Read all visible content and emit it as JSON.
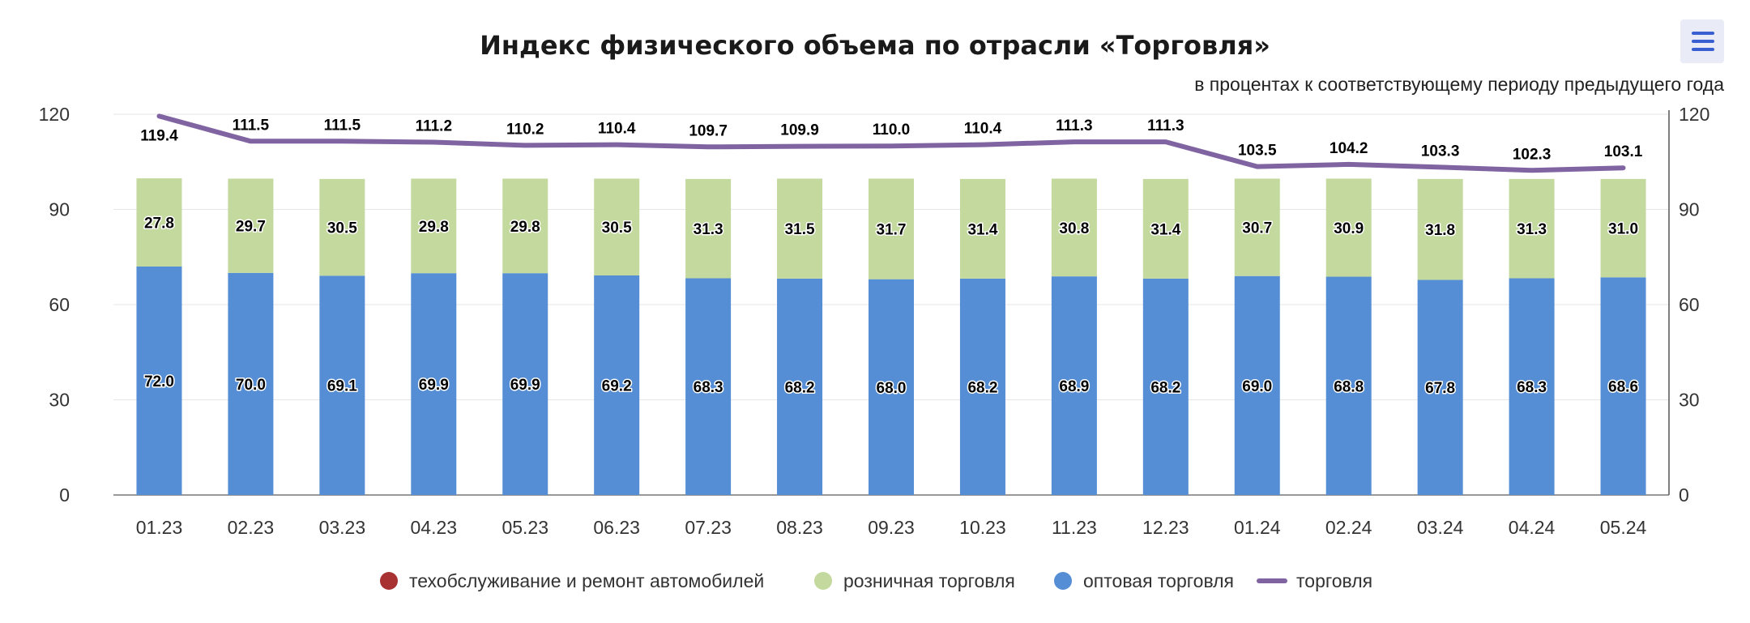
{
  "chart_data": {
    "type": "bar",
    "stacked": true,
    "title": "Индекс физического объема по отрасли «Торговля»",
    "subtitle": "в процентах к соответствующему периоду предыдущего года",
    "categories": [
      "01.23",
      "02.23",
      "03.23",
      "04.23",
      "05.23",
      "06.23",
      "07.23",
      "08.23",
      "09.23",
      "10.23",
      "11.23",
      "12.23",
      "01.24",
      "02.24",
      "03.24",
      "04.24",
      "05.24"
    ],
    "ylim": [
      0,
      120
    ],
    "yticks": [
      "0",
      "30",
      "60",
      "90",
      "120"
    ],
    "legend_position": "bottom",
    "series": [
      {
        "name": "техобслуживание и ремонт автомобилей",
        "kind": "bar",
        "color": "#a83232",
        "values": [
          0,
          0,
          0,
          0,
          0,
          0,
          0,
          0,
          0,
          0,
          0,
          0,
          0,
          0,
          0,
          0,
          0
        ]
      },
      {
        "name": "розничная торговля",
        "kind": "bar",
        "color": "#c3d99e",
        "values": [
          27.8,
          29.7,
          30.5,
          29.8,
          29.8,
          30.5,
          31.3,
          31.5,
          31.7,
          31.4,
          30.8,
          31.4,
          30.7,
          30.9,
          31.8,
          31.3,
          31.0
        ]
      },
      {
        "name": "оптовая торговля",
        "kind": "bar",
        "color": "#558ed5",
        "values": [
          72.0,
          70.0,
          69.1,
          69.9,
          69.9,
          69.2,
          68.3,
          68.2,
          68.0,
          68.2,
          68.9,
          68.2,
          69.0,
          68.8,
          67.8,
          68.3,
          68.6
        ]
      },
      {
        "name": "торговля",
        "kind": "line",
        "color": "#8064a2",
        "values": [
          119.4,
          111.5,
          111.5,
          111.2,
          110.2,
          110.4,
          109.7,
          109.9,
          110.0,
          110.4,
          111.3,
          111.3,
          103.5,
          104.2,
          103.3,
          102.3,
          103.1
        ]
      }
    ]
  }
}
